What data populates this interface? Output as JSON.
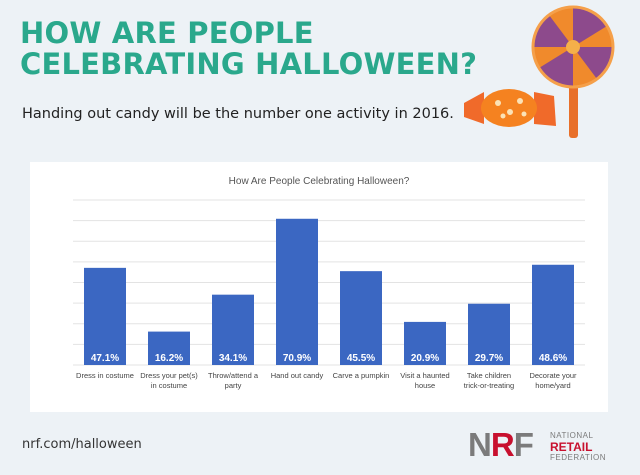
{
  "header": {
    "title": "HOW ARE PEOPLE CELEBRATING HALLOWEEN?",
    "subtitle": "Handing out candy will be the number one activity in 2016."
  },
  "colors": {
    "headline": "#2aa88c",
    "bar": "#3b67c2",
    "gridline": "#e3e3e3",
    "nrf_red": "#c8102e",
    "nrf_gray": "#7b7b7b"
  },
  "chart_data": {
    "type": "bar",
    "title": "How Are People Celebrating Halloween?",
    "categories": [
      [
        "Dress in costume"
      ],
      [
        "Dress your pet(s)",
        "in costume"
      ],
      [
        "Throw/attend a",
        "party"
      ],
      [
        "Hand out candy"
      ],
      [
        "Carve a pumpkin"
      ],
      [
        "Visit a haunted",
        "house"
      ],
      [
        "Take children",
        "trick-or-treating"
      ],
      [
        "Decorate your",
        "home/yard"
      ]
    ],
    "values": [
      47.1,
      16.2,
      34.1,
      70.9,
      45.5,
      20.9,
      29.7,
      48.6
    ],
    "value_labels": [
      "47.1%",
      "16.2%",
      "34.1%",
      "70.9%",
      "45.5%",
      "20.9%",
      "29.7%",
      "48.6%"
    ],
    "ylim": [
      0,
      80
    ],
    "grid": true,
    "legend": "none"
  },
  "footer": {
    "url": "nrf.com/halloween",
    "logo_letters": [
      "N",
      "R",
      "F"
    ],
    "logo_line1": "NATIONAL",
    "logo_line2": "RETAIL",
    "logo_line3": "FEDERATION"
  },
  "icons": [
    "lollipop-icon",
    "wrapped-candy-icon"
  ]
}
